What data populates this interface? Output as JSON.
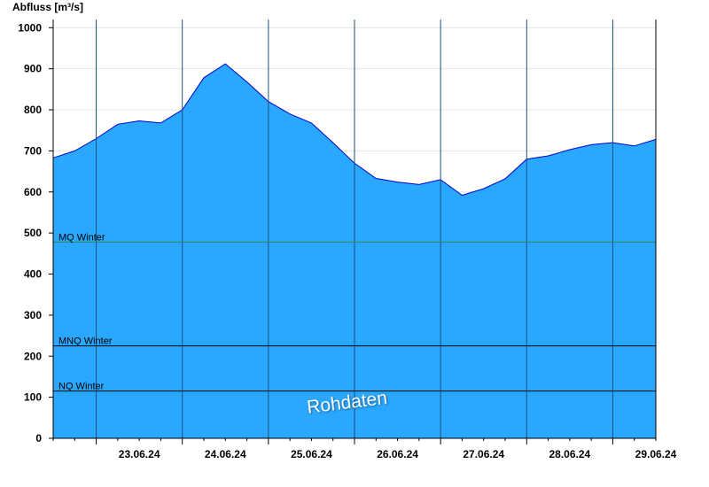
{
  "chart_data": {
    "type": "area",
    "ylabel": "Abfluss [m³/s]",
    "ylim": [
      0,
      1020
    ],
    "y_ticks": [
      0,
      100,
      200,
      300,
      400,
      500,
      600,
      700,
      800,
      900,
      1000
    ],
    "x_range": [
      "22.06.24 12:00",
      "29.06.24 12:00"
    ],
    "x_ticks": [
      "23.06.24",
      "24.06.24",
      "25.06.24",
      "26.06.24",
      "27.06.24",
      "28.06.24",
      "29.06.24"
    ],
    "grid": true,
    "series": [
      {
        "name": "Abfluss",
        "color": "#2aa7ff",
        "x": [
          0,
          0.25,
          0.5,
          0.75,
          1,
          1.25,
          1.5,
          1.75,
          2,
          2.25,
          2.5,
          2.75,
          3,
          3.25,
          3.5,
          3.75,
          4,
          4.25,
          4.5,
          4.75,
          5,
          5.25,
          5.5,
          5.75,
          6,
          6.25,
          6.5,
          6.75,
          7
        ],
        "y": [
          683,
          700,
          730,
          765,
          773,
          768,
          800,
          878,
          912,
          868,
          820,
          790,
          768,
          720,
          670,
          633,
          624,
          618,
          630,
          592,
          608,
          632,
          680,
          688,
          703,
          715,
          720,
          712,
          728
        ]
      }
    ],
    "reference_lines": [
      {
        "label": "MQ Winter",
        "value": 478,
        "color": "#2e8b57"
      },
      {
        "label": "MNQ Winter",
        "value": 225,
        "color": "#000000"
      },
      {
        "label": "NQ Winter",
        "value": 115,
        "color": "#000000"
      }
    ]
  },
  "watermark": "Rohdaten"
}
